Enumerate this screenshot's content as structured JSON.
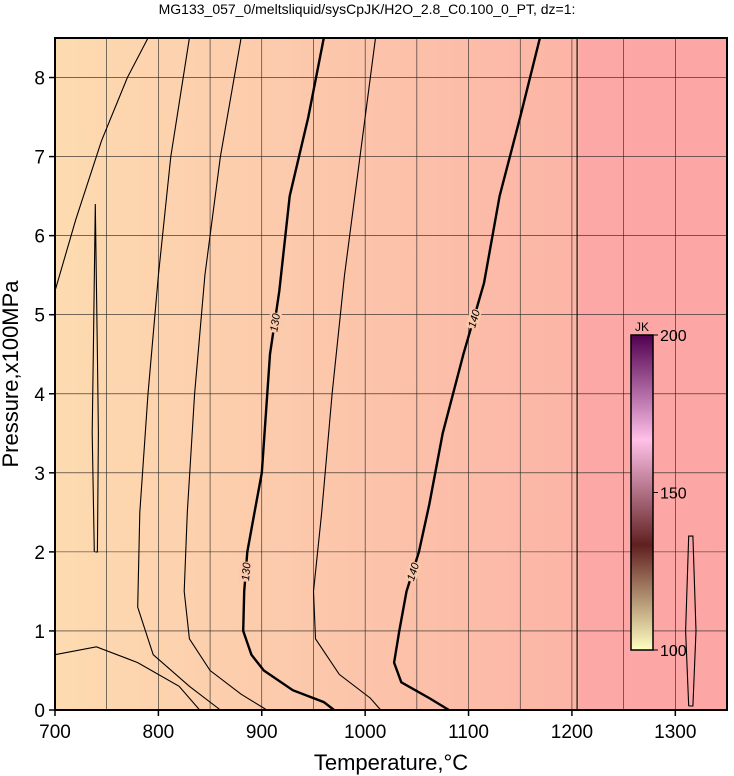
{
  "chart_data": {
    "type": "contour",
    "title": "MG133_057_0/meltsliquid/sysCpJK/H2O_2.8_C0.100_0_PT, dz=1:",
    "x_label": "Temperature,°C",
    "y_label": "Pressure,x100MPa",
    "xlim": [
      700,
      1350
    ],
    "ylim": [
      0,
      8.5
    ],
    "xticks": [
      700,
      800,
      900,
      1000,
      1100,
      1200,
      1300
    ],
    "yticks": [
      0,
      1,
      2,
      3,
      4,
      5,
      6,
      7,
      8
    ],
    "xgrid": [
      750,
      850,
      950,
      1050,
      1150,
      1250
    ],
    "grid": true,
    "contours": [
      {
        "level": 130,
        "label": "130",
        "bold": true,
        "x": [
          960,
          945,
          927,
          917,
          908,
          900,
          893,
          886,
          883,
          882,
          890,
          902,
          930,
          960,
          970
        ],
        "y": [
          8.5,
          7.5,
          6.5,
          5.3,
          4.5,
          3.0,
          2.5,
          2.0,
          1.5,
          1.0,
          0.7,
          0.5,
          0.25,
          0.1,
          0
        ]
      },
      {
        "level": 140,
        "label": "140",
        "bold": true,
        "x": [
          1169,
          1150,
          1130,
          1115,
          1095,
          1075,
          1062,
          1052,
          1040,
          1033,
          1028,
          1035,
          1062,
          1081
        ],
        "y": [
          8.5,
          7.5,
          6.5,
          5.4,
          4.5,
          3.5,
          2.6,
          2.0,
          1.5,
          1.0,
          0.6,
          0.35,
          0.15,
          0
        ]
      },
      {
        "level": 145,
        "bold": false,
        "x": [
          1205,
          1205
        ],
        "y": [
          0,
          8.5
        ]
      },
      {
        "level": 125,
        "bold": false,
        "x": [
          880,
          860,
          845,
          835,
          828,
          825,
          830,
          850,
          880,
          905
        ],
        "y": [
          8.5,
          7.0,
          5.5,
          4.0,
          2.5,
          1.5,
          0.9,
          0.5,
          0.2,
          0
        ]
      },
      {
        "level": 133,
        "bold": false,
        "x": [
          1010,
          995,
          980,
          968,
          958,
          950,
          952,
          975,
          1005,
          1015
        ],
        "y": [
          8.5,
          7.0,
          5.5,
          4.0,
          2.5,
          1.5,
          0.9,
          0.45,
          0.15,
          0
        ]
      },
      {
        "level": 120,
        "bold": false,
        "x": [
          830,
          812,
          800,
          790,
          782,
          780,
          795,
          830,
          860
        ],
        "y": [
          8.5,
          7.0,
          5.5,
          4.0,
          2.5,
          1.3,
          0.7,
          0.3,
          0
        ]
      },
      {
        "level": 115,
        "bold": false,
        "x": [
          700,
          720,
          745,
          770,
          790
        ],
        "y": [
          5.3,
          6.2,
          7.2,
          8.0,
          8.5
        ]
      },
      {
        "level": 110,
        "bold": false,
        "x": [
          700,
          740,
          780,
          820,
          840
        ],
        "y": [
          0.7,
          0.8,
          0.6,
          0.3,
          0
        ]
      },
      {
        "level": 111,
        "bold": false,
        "x": [
          738,
          736,
          737,
          739,
          741,
          742,
          741,
          739
        ],
        "y": [
          2.0,
          3.5,
          4.5,
          6.4,
          4.5,
          3.5,
          2.0,
          2.0
        ]
      },
      {
        "level": 112,
        "bold": false,
        "x": [
          1313,
          1310,
          1313,
          1317,
          1320,
          1317,
          1313
        ],
        "y": [
          0.05,
          1.0,
          2.2,
          2.2,
          1.0,
          0.05,
          0.05
        ]
      }
    ],
    "colorbar": {
      "label": "JK",
      "clim": [
        100,
        200
      ],
      "ticks": [
        100,
        150,
        200
      ],
      "colors": [
        "#ffffc0",
        "#602020",
        "#ffc0e8",
        "#500050"
      ]
    }
  }
}
